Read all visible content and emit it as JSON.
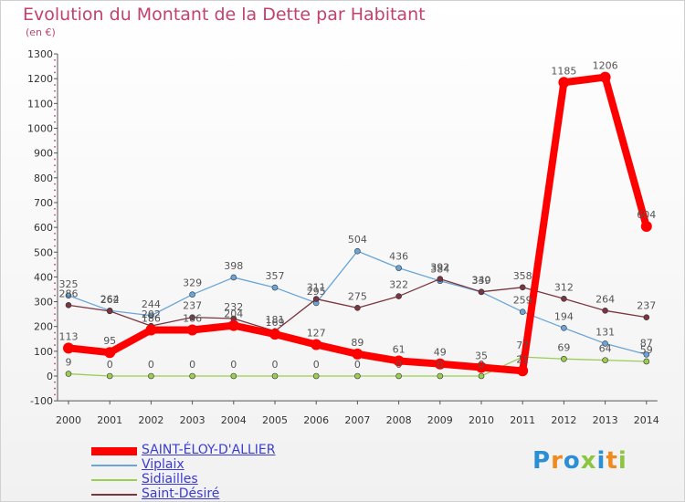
{
  "chart_data": {
    "type": "line",
    "title": "Evolution du Montant de la Dette par Habitant",
    "subtitle": "(en €)",
    "ylim": [
      -100,
      1300
    ],
    "yticks": [
      -100,
      0,
      100,
      200,
      300,
      400,
      500,
      600,
      700,
      800,
      900,
      1000,
      1100,
      1200,
      1300
    ],
    "x": [
      "2000",
      "2001",
      "2002",
      "2003",
      "2004",
      "2005",
      "2006",
      "2007",
      "2008",
      "2009",
      "2010",
      "2011",
      "2012",
      "2013",
      "2014"
    ],
    "grid": false,
    "legend_position": "bottom-left",
    "series": [
      {
        "name": "SAINT-ÉLOY-D'ALLIER",
        "color": "#ff0000",
        "values": [
          113,
          95,
          186,
          186,
          204,
          169,
          127,
          89,
          61,
          49,
          35,
          21,
          1185,
          1206,
          604
        ],
        "labels": [
          "113",
          "95",
          "186",
          "186",
          "204",
          "169",
          "127",
          "89",
          "61",
          "49",
          "35",
          "21",
          "1185",
          "1206",
          "604"
        ]
      },
      {
        "name": "Viplaix",
        "color": "#6aa5d9",
        "values": [
          325,
          264,
          244,
          329,
          398,
          357,
          295,
          504,
          436,
          384,
          339,
          259,
          194,
          131,
          87
        ],
        "labels": [
          "325",
          "264",
          "244",
          "329",
          "398",
          "357",
          "295",
          "504",
          "436",
          "384",
          "339",
          "259",
          "194",
          "131",
          "87"
        ]
      },
      {
        "name": "Sidiailles",
        "color": "#9acd52",
        "values": [
          9,
          0,
          0,
          0,
          0,
          0,
          0,
          0,
          0,
          0,
          0,
          77,
          69,
          64,
          59
        ],
        "labels": [
          "9",
          "0",
          "0",
          "0",
          "0",
          "0",
          "0",
          "0",
          "0",
          "0",
          "0",
          "77",
          "69",
          "64",
          "59"
        ]
      },
      {
        "name": "Saint-Désiré",
        "color": "#7a3540",
        "values": [
          286,
          262,
          202,
          237,
          232,
          181,
          311,
          275,
          322,
          392,
          340,
          358,
          312,
          264,
          237
        ],
        "labels": [
          "286",
          "262",
          "202",
          "237",
          "232",
          "181",
          "311",
          "275",
          "322",
          "392",
          "340",
          "358",
          "312",
          "264",
          "237"
        ]
      }
    ]
  },
  "logo": {
    "text": "Proxiti",
    "colors": [
      "#2b8fd6",
      "#f08a1c",
      "#2b8fd6",
      "#8cc63f",
      "#2b8fd6",
      "#f08a1c",
      "#8cc63f"
    ]
  }
}
